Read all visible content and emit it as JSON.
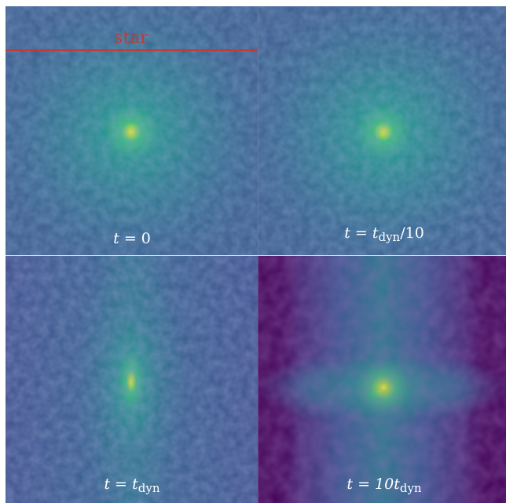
{
  "panels": [
    {
      "id": "t0",
      "label_var": "t",
      "label_eq": " = ",
      "label_rhs": "0",
      "label_sub": "",
      "label_tail": ""
    },
    {
      "id": "tdyn10",
      "label_var": "t",
      "label_eq": " = ",
      "label_rhs": "t",
      "label_sub": "dyn",
      "label_tail": "/10"
    },
    {
      "id": "tdyn",
      "label_var": "t",
      "label_eq": " = ",
      "label_rhs": "t",
      "label_sub": "dyn",
      "label_tail": ""
    },
    {
      "id": "t10dyn",
      "label_var": "t",
      "label_eq": " = ",
      "label_rhs": "10t",
      "label_sub": "dyn",
      "label_tail": ""
    }
  ],
  "annotation": {
    "text": "star",
    "color": "#c03a3a"
  },
  "colors": {
    "background": "#3f5090",
    "core": "#f7e73a",
    "glow": "#2c9a8a",
    "void": "#440256"
  }
}
